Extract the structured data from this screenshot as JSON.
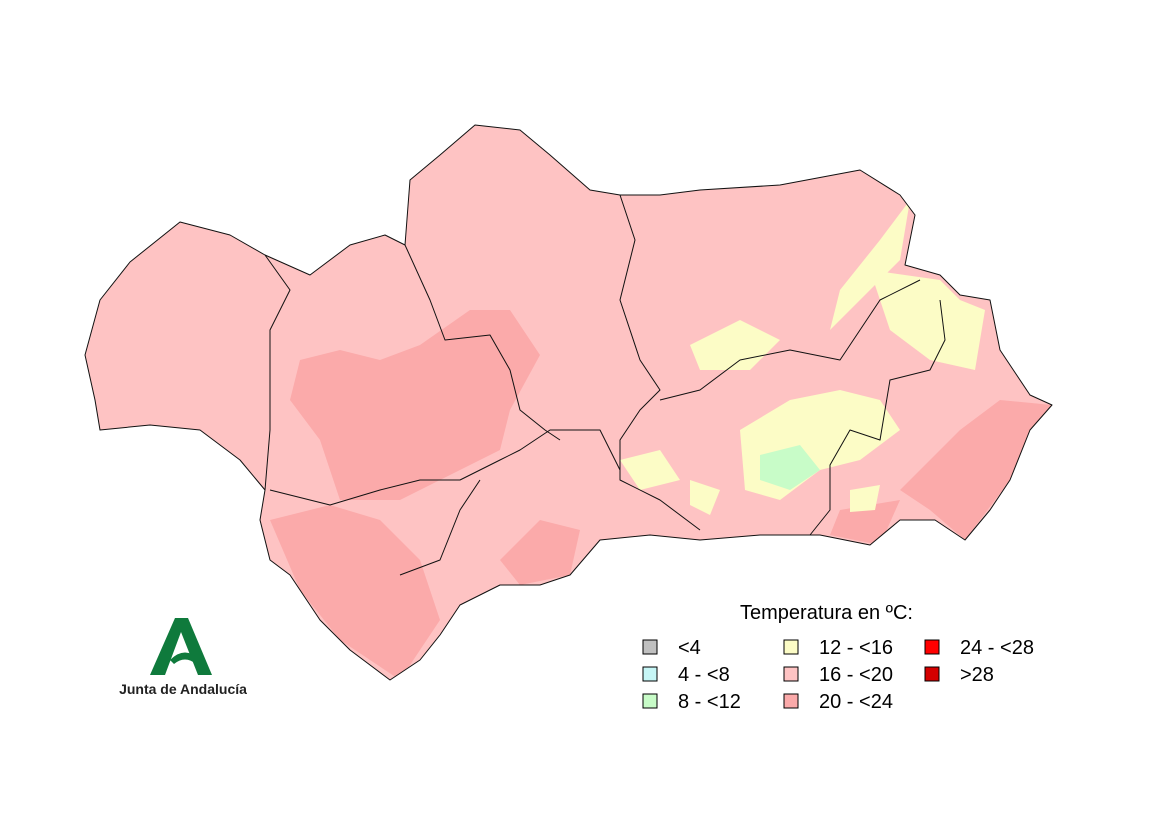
{
  "map": {
    "legend": {
      "title": "Temperatura en ºC:",
      "items": [
        {
          "label": "<4",
          "color": "#c0c0c0"
        },
        {
          "label": "4 - <8",
          "color": "#c6f6f6"
        },
        {
          "label": "8 - <12",
          "color": "#c8fcc8"
        },
        {
          "label": "12 - <16",
          "color": "#fcfcc6"
        },
        {
          "label": "16 - <20",
          "color": "#fec3c3"
        },
        {
          "label": "20 - <24",
          "color": "#fbaaaa"
        },
        {
          "label": "24 - <28",
          "color": "#ff0000"
        },
        {
          "label": ">28",
          "color": "#d40000"
        }
      ]
    },
    "logo": {
      "text": "Junta de Andalucía"
    }
  }
}
